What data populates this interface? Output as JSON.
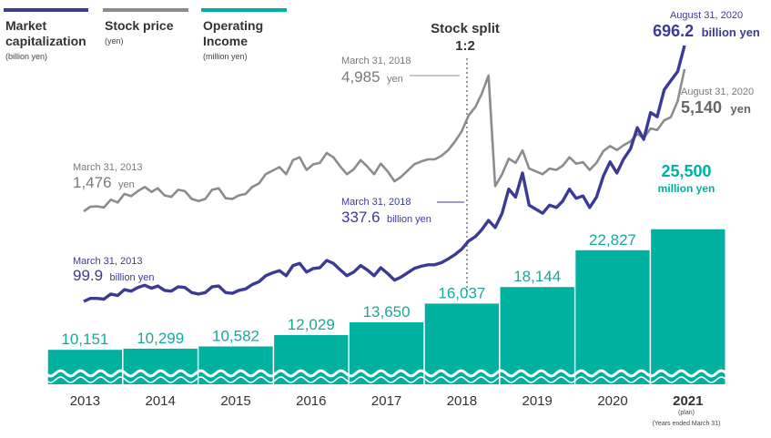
{
  "colors": {
    "market_cap": "#3b3b96",
    "stock_price": "#8c8c8c",
    "operating_income": "#00b1a0",
    "wave": "#ffffff"
  },
  "legend": [
    {
      "title_line1": "Market",
      "title_line2": "capitalization",
      "unit": "(billion yen)"
    },
    {
      "title_line1": "Stock price",
      "title_line2": "",
      "unit": "(yen)"
    },
    {
      "title_line1": "Operating",
      "title_line2": "Income",
      "unit": "(million yen)"
    }
  ],
  "split_label": {
    "line1": "Stock split",
    "line2": "1:2"
  },
  "annotations": {
    "stock_2013": {
      "date": "March 31, 2013",
      "value": "1,476",
      "unit": "yen"
    },
    "stock_2018": {
      "date": "March 31, 2018",
      "value": "4,985",
      "unit": "yen"
    },
    "stock_2020": {
      "date": "August 31, 2020",
      "value": "5,140",
      "unit": "yen"
    },
    "mcap_2013": {
      "date": "March 31, 2013",
      "value": "99.9",
      "unit": "billion yen"
    },
    "mcap_2018": {
      "date": "March 31, 2018",
      "value": "337.6",
      "unit": "billion yen"
    },
    "mcap_2020": {
      "date": "August 31, 2020",
      "value": "696.2",
      "unit": "billion yen"
    },
    "plan_value": {
      "value": "25,500",
      "unit": "million yen"
    }
  },
  "footnote": "(Years ended March 31)",
  "plan_note": "(plan)",
  "chart_data": {
    "type": "bar",
    "categories": [
      "2013",
      "2014",
      "2015",
      "2016",
      "2017",
      "2018",
      "2019",
      "2020",
      "2021"
    ],
    "series": [
      {
        "name": "Operating Income",
        "unit": "million yen",
        "values": [
          10151,
          10299,
          10582,
          12029,
          13650,
          16037,
          18144,
          22827,
          25500
        ],
        "labels": [
          "10,151",
          "10,299",
          "10,582",
          "12,029",
          "13,650",
          "16,037",
          "18,144",
          "22,827",
          "25,500"
        ]
      },
      {
        "name": "Stock price",
        "unit": "yen",
        "type": "line",
        "points": [
          {
            "t": "2013-03-31",
            "v": 1476
          },
          {
            "t": "2013-04-30",
            "v": 1540
          },
          {
            "t": "2013-05-31",
            "v": 1545
          },
          {
            "t": "2013-06-30",
            "v": 1530
          },
          {
            "t": "2013-07-31",
            "v": 1640
          },
          {
            "t": "2013-08-31",
            "v": 1600
          },
          {
            "t": "2013-09-30",
            "v": 1720
          },
          {
            "t": "2013-10-31",
            "v": 1690
          },
          {
            "t": "2013-11-30",
            "v": 1760
          },
          {
            "t": "2013-12-31",
            "v": 1820
          },
          {
            "t": "2014-01-31",
            "v": 1750
          },
          {
            "t": "2014-02-28",
            "v": 1800
          },
          {
            "t": "2014-03-31",
            "v": 1700
          },
          {
            "t": "2014-04-30",
            "v": 1680
          },
          {
            "t": "2014-05-31",
            "v": 1780
          },
          {
            "t": "2014-06-30",
            "v": 1760
          },
          {
            "t": "2014-07-31",
            "v": 1650
          },
          {
            "t": "2014-08-31",
            "v": 1620
          },
          {
            "t": "2014-09-30",
            "v": 1650
          },
          {
            "t": "2014-10-31",
            "v": 1780
          },
          {
            "t": "2014-11-30",
            "v": 1800
          },
          {
            "t": "2014-12-31",
            "v": 1660
          },
          {
            "t": "2015-01-31",
            "v": 1650
          },
          {
            "t": "2015-02-28",
            "v": 1700
          },
          {
            "t": "2015-03-31",
            "v": 1720
          },
          {
            "t": "2015-04-30",
            "v": 1820
          },
          {
            "t": "2015-05-31",
            "v": 1870
          },
          {
            "t": "2015-06-30",
            "v": 2000
          },
          {
            "t": "2015-07-31",
            "v": 2050
          },
          {
            "t": "2015-08-31",
            "v": 2100
          },
          {
            "t": "2015-09-30",
            "v": 2000
          },
          {
            "t": "2015-10-31",
            "v": 2200
          },
          {
            "t": "2015-11-30",
            "v": 2240
          },
          {
            "t": "2015-12-31",
            "v": 2060
          },
          {
            "t": "2016-01-31",
            "v": 2140
          },
          {
            "t": "2016-02-29",
            "v": 2160
          },
          {
            "t": "2016-03-31",
            "v": 2300
          },
          {
            "t": "2016-04-30",
            "v": 2240
          },
          {
            "t": "2016-05-31",
            "v": 2110
          },
          {
            "t": "2016-06-30",
            "v": 2000
          },
          {
            "t": "2016-07-31",
            "v": 2070
          },
          {
            "t": "2016-08-31",
            "v": 2200
          },
          {
            "t": "2016-09-30",
            "v": 2110
          },
          {
            "t": "2016-10-31",
            "v": 2000
          },
          {
            "t": "2016-11-30",
            "v": 2150
          },
          {
            "t": "2016-12-31",
            "v": 2040
          },
          {
            "t": "2017-01-31",
            "v": 1900
          },
          {
            "t": "2017-02-28",
            "v": 1960
          },
          {
            "t": "2017-03-31",
            "v": 2050
          },
          {
            "t": "2017-04-30",
            "v": 2140
          },
          {
            "t": "2017-05-31",
            "v": 2180
          },
          {
            "t": "2017-06-30",
            "v": 2210
          },
          {
            "t": "2017-07-31",
            "v": 2210
          },
          {
            "t": "2017-08-31",
            "v": 2260
          },
          {
            "t": "2017-09-30",
            "v": 2400
          },
          {
            "t": "2017-10-31",
            "v": 2700
          },
          {
            "t": "2017-11-30",
            "v": 3050
          },
          {
            "t": "2017-12-31",
            "v": 3600
          },
          {
            "t": "2018-01-31",
            "v": 3900
          },
          {
            "t": "2018-02-28",
            "v": 4350
          },
          {
            "t": "2018-03-31",
            "v": 4985
          },
          {
            "t": "2018-04-30",
            "v": 1830
          },
          {
            "t": "2018-05-31",
            "v": 2000
          },
          {
            "t": "2018-06-30",
            "v": 2220
          },
          {
            "t": "2018-07-31",
            "v": 2160
          },
          {
            "t": "2018-08-31",
            "v": 2390
          },
          {
            "t": "2018-09-30",
            "v": 2080
          },
          {
            "t": "2018-10-31",
            "v": 2040
          },
          {
            "t": "2018-11-30",
            "v": 2000
          },
          {
            "t": "2018-12-31",
            "v": 2080
          },
          {
            "t": "2019-01-31",
            "v": 2060
          },
          {
            "t": "2019-02-28",
            "v": 2120
          },
          {
            "t": "2019-03-31",
            "v": 2240
          },
          {
            "t": "2019-04-30",
            "v": 2150
          },
          {
            "t": "2019-05-31",
            "v": 2170
          },
          {
            "t": "2019-06-30",
            "v": 2060
          },
          {
            "t": "2019-07-31",
            "v": 2160
          },
          {
            "t": "2019-08-31",
            "v": 2370
          },
          {
            "t": "2019-09-30",
            "v": 2540
          },
          {
            "t": "2019-10-31",
            "v": 2400
          },
          {
            "t": "2019-11-30",
            "v": 2570
          },
          {
            "t": "2019-12-31",
            "v": 2700
          },
          {
            "t": "2020-01-31",
            "v": 2960
          },
          {
            "t": "2020-02-29",
            "v": 2820
          },
          {
            "t": "2020-03-31",
            "v": 3150
          },
          {
            "t": "2020-04-30",
            "v": 3100
          },
          {
            "t": "2020-05-31",
            "v": 3430
          },
          {
            "t": "2020-06-30",
            "v": 3540
          },
          {
            "t": "2020-07-31",
            "v": 4100
          },
          {
            "t": "2020-08-31",
            "v": 5140
          }
        ]
      },
      {
        "name": "Market capitalization",
        "unit": "billion yen",
        "type": "line",
        "points": [
          {
            "t": "2013-03-31",
            "v": 99.9
          },
          {
            "t": "2013-04-30",
            "v": 104
          },
          {
            "t": "2013-05-31",
            "v": 104
          },
          {
            "t": "2013-06-30",
            "v": 103
          },
          {
            "t": "2013-07-31",
            "v": 110
          },
          {
            "t": "2013-08-31",
            "v": 108
          },
          {
            "t": "2013-09-30",
            "v": 116
          },
          {
            "t": "2013-10-31",
            "v": 114
          },
          {
            "t": "2013-11-30",
            "v": 119
          },
          {
            "t": "2013-12-31",
            "v": 122
          },
          {
            "t": "2014-01-31",
            "v": 118
          },
          {
            "t": "2014-02-28",
            "v": 121
          },
          {
            "t": "2014-03-31",
            "v": 115
          },
          {
            "t": "2014-04-30",
            "v": 114
          },
          {
            "t": "2014-05-31",
            "v": 120
          },
          {
            "t": "2014-06-30",
            "v": 119
          },
          {
            "t": "2014-07-31",
            "v": 112
          },
          {
            "t": "2014-08-31",
            "v": 110
          },
          {
            "t": "2014-09-30",
            "v": 112
          },
          {
            "t": "2014-10-31",
            "v": 120
          },
          {
            "t": "2014-11-30",
            "v": 121
          },
          {
            "t": "2014-12-31",
            "v": 112
          },
          {
            "t": "2015-01-31",
            "v": 111
          },
          {
            "t": "2015-02-28",
            "v": 115
          },
          {
            "t": "2015-03-31",
            "v": 117
          },
          {
            "t": "2015-04-30",
            "v": 123
          },
          {
            "t": "2015-05-31",
            "v": 127
          },
          {
            "t": "2015-06-30",
            "v": 135
          },
          {
            "t": "2015-07-31",
            "v": 139
          },
          {
            "t": "2015-08-31",
            "v": 142
          },
          {
            "t": "2015-09-30",
            "v": 135
          },
          {
            "t": "2015-10-31",
            "v": 149
          },
          {
            "t": "2015-11-30",
            "v": 152
          },
          {
            "t": "2015-12-31",
            "v": 140
          },
          {
            "t": "2016-01-31",
            "v": 145
          },
          {
            "t": "2016-02-29",
            "v": 146
          },
          {
            "t": "2016-03-31",
            "v": 156
          },
          {
            "t": "2016-04-30",
            "v": 152
          },
          {
            "t": "2016-05-31",
            "v": 143
          },
          {
            "t": "2016-06-30",
            "v": 135
          },
          {
            "t": "2016-07-31",
            "v": 140
          },
          {
            "t": "2016-08-31",
            "v": 149
          },
          {
            "t": "2016-09-30",
            "v": 143
          },
          {
            "t": "2016-10-31",
            "v": 135
          },
          {
            "t": "2016-11-30",
            "v": 146
          },
          {
            "t": "2016-12-31",
            "v": 138
          },
          {
            "t": "2017-01-31",
            "v": 129
          },
          {
            "t": "2017-02-28",
            "v": 133
          },
          {
            "t": "2017-03-31",
            "v": 139
          },
          {
            "t": "2017-04-30",
            "v": 145
          },
          {
            "t": "2017-05-31",
            "v": 148
          },
          {
            "t": "2017-06-30",
            "v": 150
          },
          {
            "t": "2017-07-31",
            "v": 150
          },
          {
            "t": "2017-08-31",
            "v": 153
          },
          {
            "t": "2017-09-30",
            "v": 163
          },
          {
            "t": "2017-10-31",
            "v": 183
          },
          {
            "t": "2017-11-30",
            "v": 207
          },
          {
            "t": "2017-12-31",
            "v": 244
          },
          {
            "t": "2018-01-31",
            "v": 264
          },
          {
            "t": "2018-02-28",
            "v": 295
          },
          {
            "t": "2018-03-31",
            "v": 337.6
          },
          {
            "t": "2018-04-30",
            "v": 305
          },
          {
            "t": "2018-05-31",
            "v": 350
          },
          {
            "t": "2018-06-30",
            "v": 392
          },
          {
            "t": "2018-07-31",
            "v": 378
          },
          {
            "t": "2018-08-31",
            "v": 420
          },
          {
            "t": "2018-09-30",
            "v": 364
          },
          {
            "t": "2018-10-31",
            "v": 357
          },
          {
            "t": "2018-11-30",
            "v": 350
          },
          {
            "t": "2018-12-31",
            "v": 364
          },
          {
            "t": "2019-01-31",
            "v": 360
          },
          {
            "t": "2019-02-28",
            "v": 371
          },
          {
            "t": "2019-03-31",
            "v": 392
          },
          {
            "t": "2019-04-30",
            "v": 376
          },
          {
            "t": "2019-05-31",
            "v": 380
          },
          {
            "t": "2019-06-30",
            "v": 360
          },
          {
            "t": "2019-07-31",
            "v": 378
          },
          {
            "t": "2019-08-31",
            "v": 415
          },
          {
            "t": "2019-09-30",
            "v": 444
          },
          {
            "t": "2019-10-31",
            "v": 420
          },
          {
            "t": "2019-11-30",
            "v": 450
          },
          {
            "t": "2019-12-31",
            "v": 472
          },
          {
            "t": "2020-01-31",
            "v": 518
          },
          {
            "t": "2020-02-29",
            "v": 493
          },
          {
            "t": "2020-03-31",
            "v": 551
          },
          {
            "t": "2020-04-30",
            "v": 542
          },
          {
            "t": "2020-05-31",
            "v": 600
          },
          {
            "t": "2020-06-30",
            "v": 620
          },
          {
            "t": "2020-07-31",
            "v": 640
          },
          {
            "t": "2020-08-31",
            "v": 696.2
          }
        ]
      }
    ],
    "annotations": [
      "Stock split 1:2 (March 31, 2018)"
    ],
    "grid": false
  }
}
